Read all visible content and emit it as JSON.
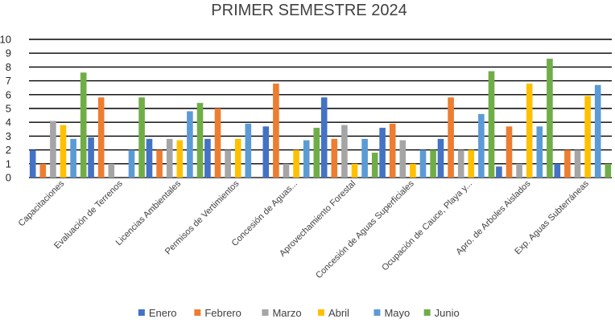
{
  "chart_data": {
    "type": "bar",
    "title": "PRIMER SEMESTRE 2024",
    "xlabel": "",
    "ylabel": "",
    "ylim": [
      0,
      10
    ],
    "yticks": [
      0,
      1,
      2,
      3,
      4,
      5,
      6,
      7,
      8,
      9,
      10
    ],
    "grid": true,
    "legend_position": "bottom",
    "categories": [
      "Capacitaciones",
      "Evaluación de Terrenos",
      "Licencias Ambientales",
      "Permisos de Vertimientos",
      "Concesión de Aguas...",
      "Aprovechamiento Forestal",
      "Concesión de Aguas Superficiales",
      "Ocupación de Cauce, Playa y...",
      "Apro. de Arboles Aislados",
      "Exp. Aguas Subterráneas"
    ],
    "series": [
      {
        "name": "Enero",
        "color": "#4472C4",
        "values": [
          2.0,
          2.9,
          2.8,
          2.8,
          3.7,
          5.8,
          3.6,
          2.8,
          0.8,
          1.0
        ]
      },
      {
        "name": "Febrero",
        "color": "#ED7D31",
        "values": [
          1.0,
          5.8,
          2.0,
          5.0,
          6.8,
          2.8,
          3.9,
          5.8,
          3.7,
          2.0
        ]
      },
      {
        "name": "Marzo",
        "color": "#A5A5A5",
        "values": [
          4.1,
          1.0,
          2.8,
          2.0,
          1.0,
          3.8,
          2.7,
          2.0,
          1.0,
          2.0
        ]
      },
      {
        "name": "Abril",
        "color": "#FFC000",
        "values": [
          3.8,
          0.0,
          2.7,
          2.8,
          2.0,
          1.0,
          1.0,
          2.0,
          6.8,
          5.9
        ]
      },
      {
        "name": "Mayo",
        "color": "#5B9BD5",
        "values": [
          2.8,
          2.0,
          4.8,
          3.9,
          2.7,
          2.8,
          2.0,
          4.6,
          3.7,
          6.7
        ]
      },
      {
        "name": "Junio",
        "color": "#70AD47",
        "values": [
          7.6,
          5.8,
          5.4,
          0.0,
          3.6,
          1.8,
          2.0,
          7.7,
          8.6,
          1.0
        ]
      }
    ]
  }
}
